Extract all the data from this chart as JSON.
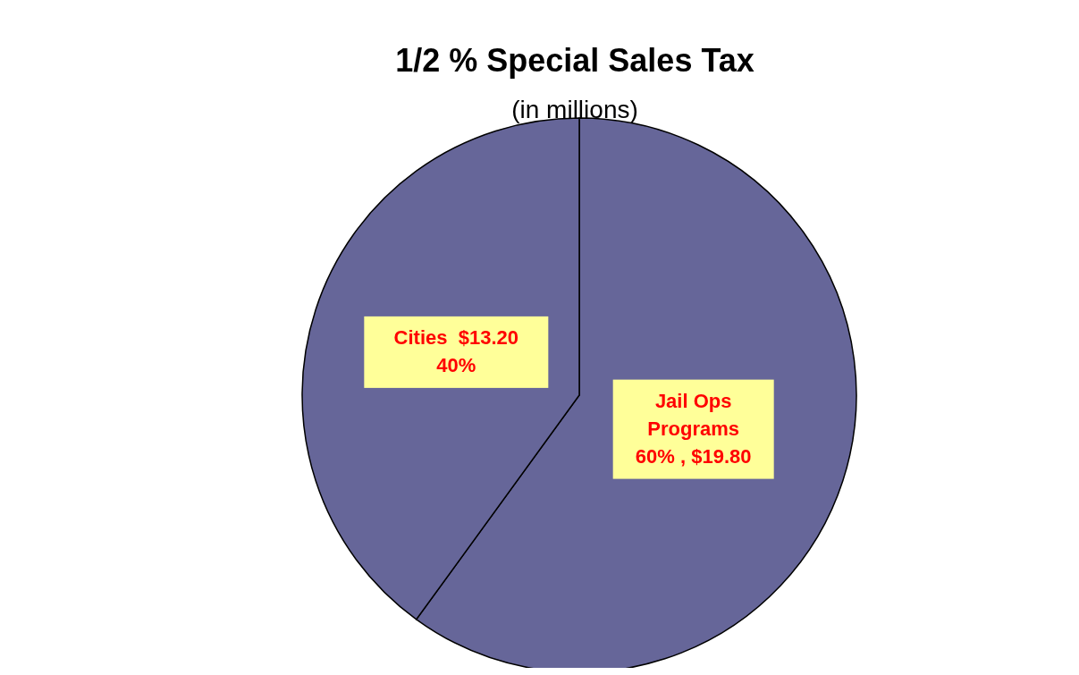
{
  "chart_data": {
    "type": "pie",
    "title": "1/2 % Special Sales Tax",
    "subtitle": "(in millions)",
    "categories": [
      "Jail Ops\nPrograms",
      "Cities"
    ],
    "values": [
      19.8,
      13.2
    ],
    "colors": [
      "#666699",
      "#666699"
    ],
    "value_labels": [
      "60% , $19.80",
      "$13.20\n40%"
    ]
  }
}
